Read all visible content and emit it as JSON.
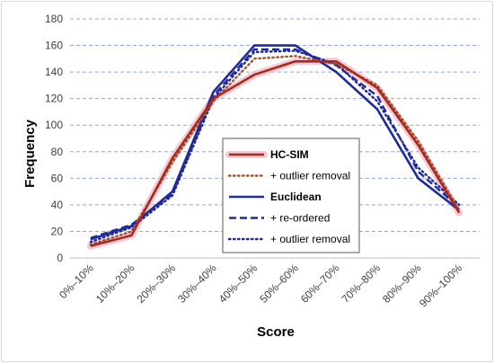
{
  "chart_data": {
    "type": "line",
    "categories": [
      "0%–10%",
      "10%–20%",
      "20%–30%",
      "30%–40%",
      "40%–50%",
      "50%–60%",
      "60%–70%",
      "70%–80%",
      "80%–90%",
      "90%–100%"
    ],
    "xlabel": "Score",
    "ylabel": "Frequency",
    "ylim": [
      0,
      180
    ],
    "yticks": [
      0,
      20,
      40,
      60,
      80,
      100,
      120,
      140,
      160,
      180
    ],
    "grid": true,
    "legend_position": "center",
    "series": [
      {
        "name": "HC-SIM",
        "values": [
          9,
          17,
          75,
          120,
          138,
          148,
          148,
          128,
          85,
          34
        ],
        "color": "#a52a1f",
        "style": "solid",
        "bold": true,
        "glow": true
      },
      {
        "name": "+ outlier removal",
        "values": [
          10,
          20,
          72,
          118,
          150,
          152,
          146,
          130,
          88,
          36
        ],
        "color": "#a0522d",
        "style": "dotted",
        "bold": false,
        "glow": false
      },
      {
        "name": "Euclidean",
        "values": [
          14,
          24,
          50,
          125,
          160,
          160,
          140,
          112,
          60,
          36
        ],
        "color": "#1f2a9b",
        "style": "solid",
        "bold": true,
        "glow": false
      },
      {
        "name": "+ re-ordered",
        "values": [
          15,
          25,
          48,
          122,
          157,
          157,
          145,
          122,
          65,
          38
        ],
        "color": "#1f2a9b",
        "style": "dashed",
        "bold": false,
        "glow": false
      },
      {
        "name": "+ outlier removal",
        "values": [
          12,
          23,
          47,
          120,
          155,
          156,
          146,
          118,
          68,
          40
        ],
        "color": "#1f2a9b",
        "style": "dotted",
        "bold": false,
        "glow": false
      }
    ]
  }
}
